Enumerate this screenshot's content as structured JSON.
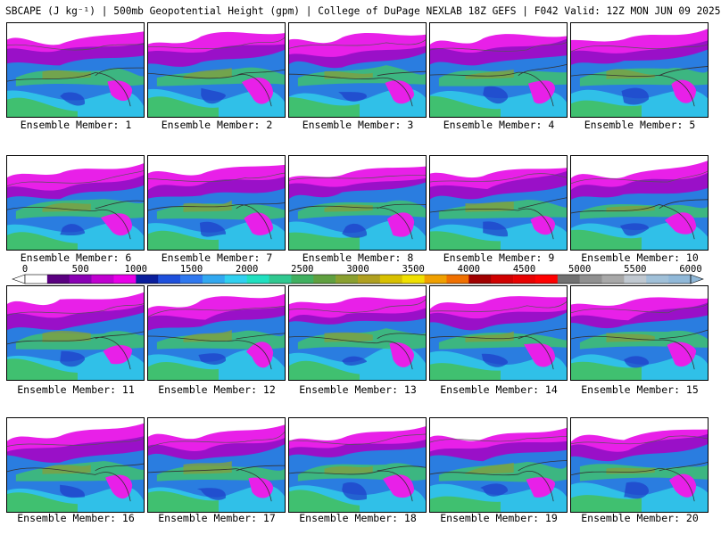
{
  "title": "SBCAPE (J kg⁻¹) | 500mb Geopotential Height (gpm) | College of DuPage NEXLAB 18Z GEFS | F042 Valid: 12Z MON JUN 09 2025",
  "colorbar": {
    "ticks": [
      "0",
      "500",
      "1000",
      "1500",
      "2000",
      "2500",
      "3000",
      "3500",
      "4000",
      "4500",
      "5000",
      "5500",
      "6000"
    ],
    "colors": [
      "#ffffff",
      "#5a0080",
      "#8a00b4",
      "#c000d0",
      "#e800e8",
      "#0a1e9c",
      "#1e50dc",
      "#2f78ef",
      "#32a8f0",
      "#30d0f0",
      "#20e0c0",
      "#30c890",
      "#40b060",
      "#60a040",
      "#8aa030",
      "#b0a020",
      "#d8c000",
      "#f0e000",
      "#f0a000",
      "#f07000",
      "#a00000",
      "#d00000",
      "#e80000",
      "#ff0000",
      "#707070",
      "#909090",
      "#a8a8a8",
      "#c0c8d0",
      "#a0c0d8",
      "#90b8d8"
    ]
  },
  "panels": [
    {
      "label": "Ensemble Member: 1"
    },
    {
      "label": "Ensemble Member: 2"
    },
    {
      "label": "Ensemble Member: 3"
    },
    {
      "label": "Ensemble Member: 4"
    },
    {
      "label": "Ensemble Member: 5"
    },
    {
      "label": "Ensemble Member: 6"
    },
    {
      "label": "Ensemble Member: 7"
    },
    {
      "label": "Ensemble Member: 8"
    },
    {
      "label": "Ensemble Member: 9"
    },
    {
      "label": "Ensemble Member: 10"
    },
    {
      "label": "Ensemble Member: 11"
    },
    {
      "label": "Ensemble Member: 12"
    },
    {
      "label": "Ensemble Member: 13"
    },
    {
      "label": "Ensemble Member: 14"
    },
    {
      "label": "Ensemble Member: 15"
    },
    {
      "label": "Ensemble Member: 16"
    },
    {
      "label": "Ensemble Member: 17"
    },
    {
      "label": "Ensemble Member: 18"
    },
    {
      "label": "Ensemble Member: 19"
    },
    {
      "label": "Ensemble Member: 20"
    }
  ],
  "map_colors": {
    "low_cape": "#ffffff",
    "purple_band": "#9a10c8",
    "magenta": "#e820e8",
    "blue_dark": "#1e3cc8",
    "blue_mid": "#2a7de0",
    "cyan": "#30c0e8",
    "green": "#40c070",
    "olive": "#80a040"
  }
}
